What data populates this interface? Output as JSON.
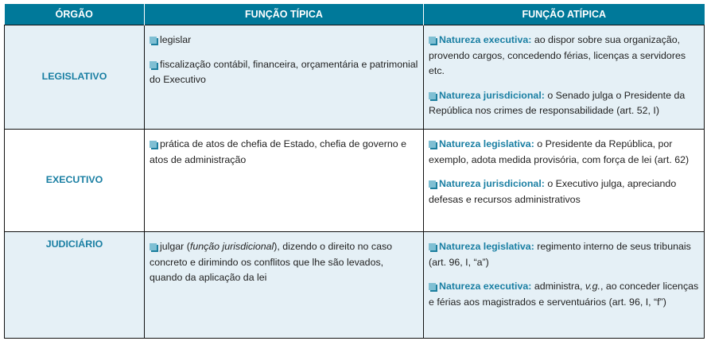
{
  "header": {
    "col1": "ÓRGÃO",
    "col2": "FUNÇÃO TÍPICA",
    "col3": "FUNÇÃO ATÍPICA"
  },
  "colors": {
    "header_bg": "#00799a",
    "accent": "#1a7fa3",
    "row_alt_bg": "#e5f0f6"
  },
  "rows": [
    {
      "organ": "LEGISLATIVO",
      "typical": [
        {
          "segments": [
            {
              "t": "legislar"
            }
          ]
        },
        {
          "segments": [
            {
              "t": "fiscalização contábil, financeira, orçamentária e patrimonial do Executivo"
            }
          ]
        }
      ],
      "atypical": [
        {
          "label": "Natureza executiva:",
          "segments": [
            {
              "t": " ao dispor sobre sua organização, provendo cargos, concedendo férias, licenças a servidores etc."
            }
          ]
        },
        {
          "label": "Natureza jurisdicional:",
          "segments": [
            {
              "t": " o Senado julga o Presidente da República nos crimes de responsabilidade (art. 52, I)"
            }
          ]
        }
      ]
    },
    {
      "organ": "EXECUTIVO",
      "typical": [
        {
          "segments": [
            {
              "t": "prática de atos de chefia de Estado, chefia de governo e atos de administração"
            }
          ]
        }
      ],
      "atypical": [
        {
          "label": "Natureza legislativa:",
          "segments": [
            {
              "t": " o Presidente da República, por exemplo, adota medida provisória, com força de lei (art. 62)"
            }
          ]
        },
        {
          "label": "Natureza jurisdicional:",
          "segments": [
            {
              "t": " o Executivo julga, apreciando defesas e recursos administrativos"
            }
          ]
        }
      ]
    },
    {
      "organ": "JUDICIÁRIO",
      "typical": [
        {
          "segments": [
            {
              "t": "julgar ("
            },
            {
              "t": "função jurisdicional",
              "i": true
            },
            {
              "t": "), dizendo o direito no caso concreto e dirimindo os conflitos que lhe são levados, quando da aplicação da lei"
            }
          ]
        }
      ],
      "atypical": [
        {
          "label": "Natureza legislativa:",
          "segments": [
            {
              "t": " regimento interno de seus tribunais (art. 96, I, “a”)"
            }
          ]
        },
        {
          "label": "Natureza executiva:",
          "segments": [
            {
              "t": " administra, "
            },
            {
              "t": "v.g.",
              "i": true
            },
            {
              "t": ", ao conceder licenças e férias aos magistrados e serventuários (art. 96, I, “f”)"
            }
          ]
        }
      ]
    }
  ]
}
